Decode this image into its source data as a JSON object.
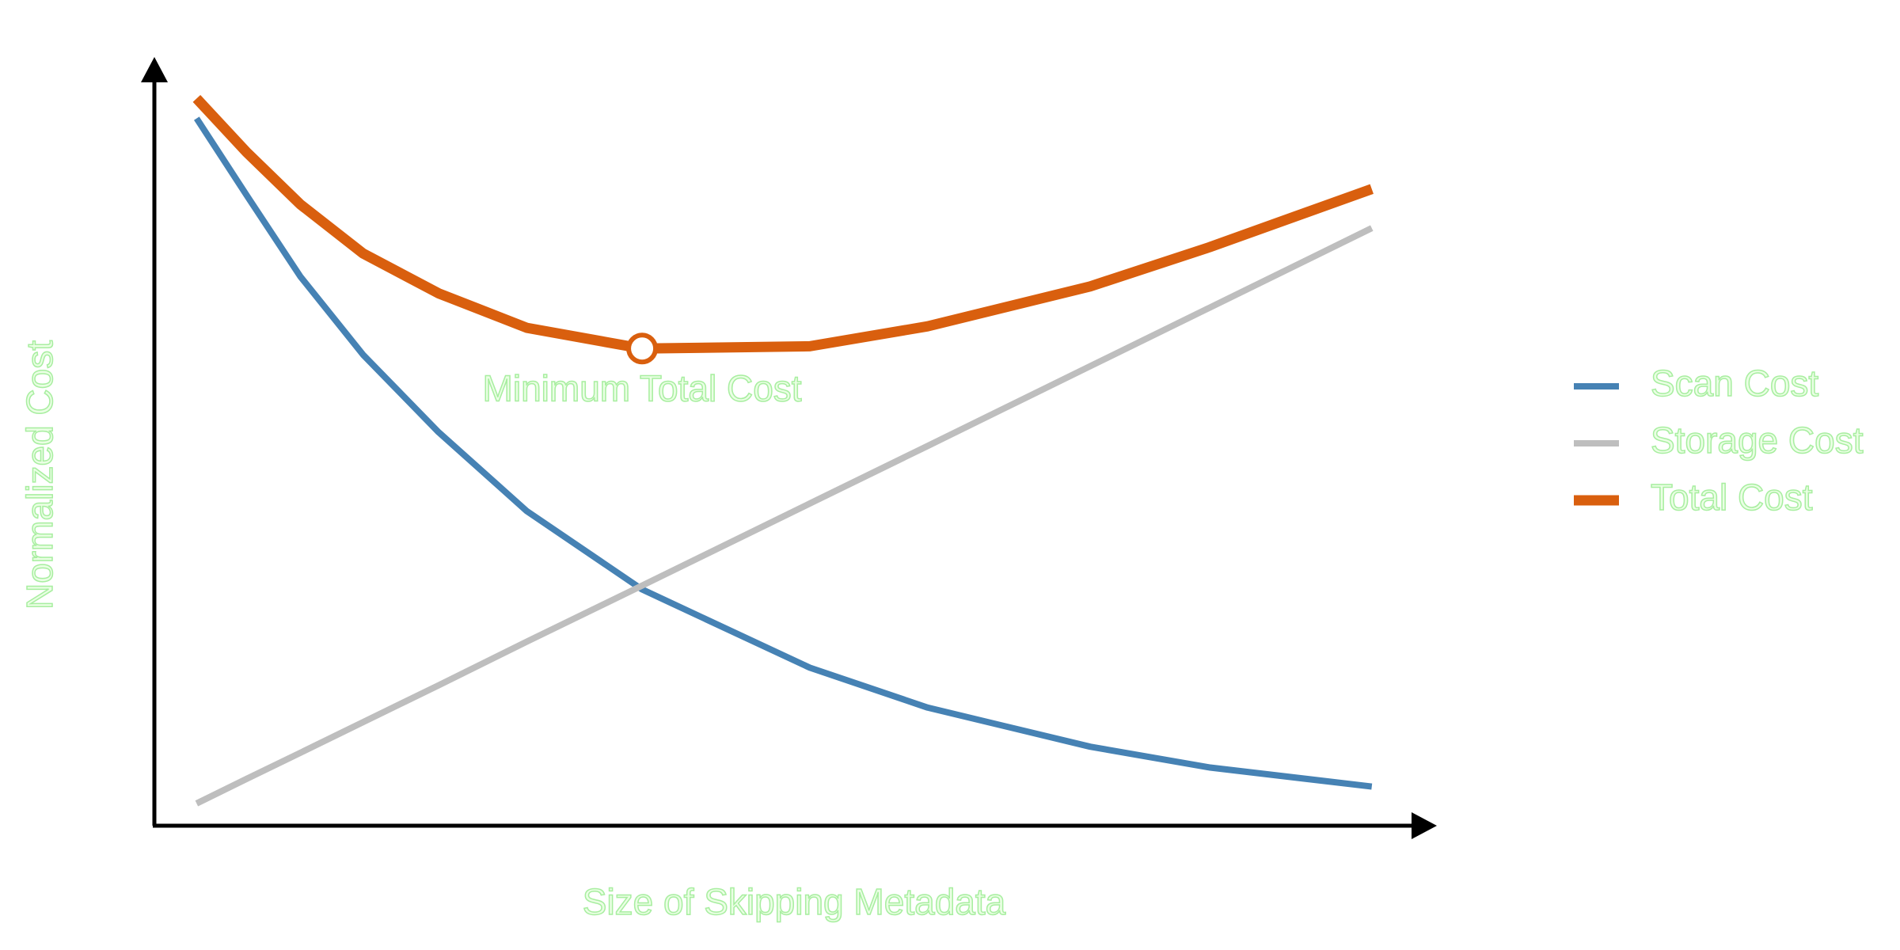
{
  "chart_data": {
    "type": "line",
    "xlabel": "Size of Skipping Metadata",
    "ylabel": "Normalized Cost",
    "x": [
      3.3,
      7.2,
      11.4,
      16.3,
      22.2,
      29.1,
      38.1,
      51.2,
      60.4,
      73.1,
      82.4,
      95.1
    ],
    "series": [
      {
        "name": "Scan Cost",
        "color": "#4682b4",
        "values": [
          92.2,
          82.2,
          71.6,
          61.4,
          51.3,
          41.0,
          30.8,
          20.6,
          15.4,
          10.3,
          7.6,
          5.1
        ]
      },
      {
        "name": "Storage Cost",
        "color": "#bebebe",
        "values": [
          2.9,
          6.1,
          9.5,
          13.5,
          18.3,
          24.0,
          31.3,
          42.0,
          49.5,
          59.9,
          67.5,
          77.9
        ]
      },
      {
        "name": "Total Cost",
        "color": "#d95f0e",
        "values": [
          94.8,
          87.8,
          81.0,
          74.6,
          69.4,
          64.9,
          62.2,
          62.5,
          65.1,
          70.3,
          75.4,
          83.0
        ]
      }
    ],
    "annotation": {
      "text": "Minimum Total Cost",
      "x": 38.1,
      "y": 62.2
    },
    "xlim": [
      0,
      100
    ],
    "ylim": [
      0,
      100
    ],
    "legend": "right"
  }
}
